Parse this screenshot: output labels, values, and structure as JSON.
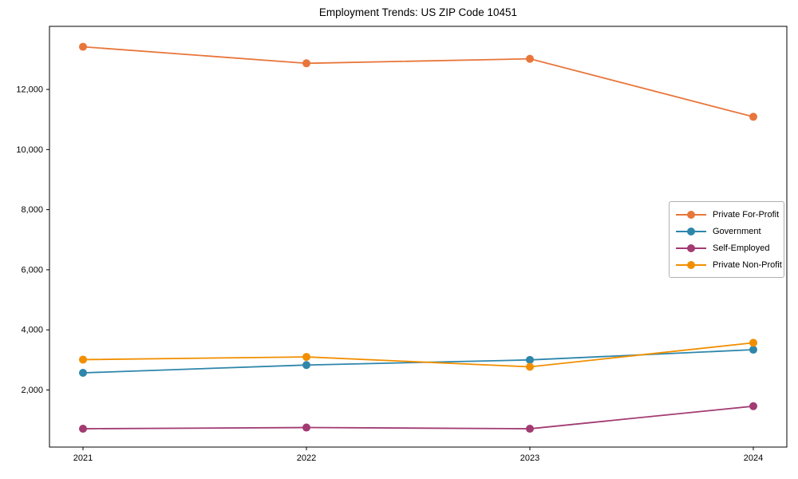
{
  "chart_data": {
    "type": "line",
    "title": "Employment Trends: US ZIP Code 10451",
    "xlabel": "",
    "ylabel": "",
    "x": [
      2021,
      2022,
      2023,
      2024
    ],
    "x_tick_labels": [
      "2021",
      "2022",
      "2023",
      "2024"
    ],
    "yticks": [
      2000,
      4000,
      6000,
      8000,
      10000,
      12000
    ],
    "y_tick_labels": [
      "2,000",
      "4,000",
      "6,000",
      "8,000",
      "10,000",
      "12,000"
    ],
    "ylim": [
      100,
      14100
    ],
    "xlim": [
      2020.85,
      2024.15
    ],
    "grid": false,
    "legend_position": "center-right",
    "marker": "circle",
    "series": [
      {
        "name": "Private For-Profit",
        "color": "#e8763b",
        "values": [
          13420,
          12870,
          13020,
          11090
        ]
      },
      {
        "name": "Government",
        "color": "#2e86ab",
        "values": [
          2570,
          2830,
          3000,
          3340
        ]
      },
      {
        "name": "Self-Employed",
        "color": "#a23b72",
        "values": [
          710,
          750,
          710,
          1460
        ]
      },
      {
        "name": "Private Non-Profit",
        "color": "#f18f01",
        "values": [
          3010,
          3100,
          2770,
          3570
        ]
      }
    ]
  }
}
